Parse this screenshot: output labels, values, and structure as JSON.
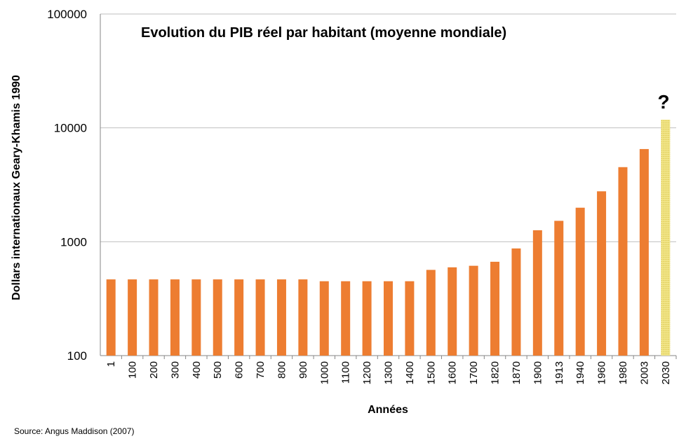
{
  "chart_data": {
    "type": "bar",
    "title": "Evolution du PIB réel par habitant (moyenne mondiale)",
    "xlabel": "Années",
    "ylabel": "Dollars internationaux Geary-Khamis 1990",
    "yscale": "log",
    "ylim": [
      100,
      100000
    ],
    "yticks": [
      "100",
      "1000",
      "10000",
      "100000"
    ],
    "grid": true,
    "categories": [
      "1",
      "100",
      "200",
      "300",
      "400",
      "500",
      "600",
      "700",
      "800",
      "900",
      "1000",
      "1100",
      "1200",
      "1300",
      "1400",
      "1500",
      "1600",
      "1700",
      "1820",
      "1870",
      "1900",
      "1913",
      "1940",
      "1960",
      "1980",
      "2003",
      "2030"
    ],
    "values": [
      467,
      467,
      467,
      467,
      467,
      467,
      467,
      467,
      467,
      467,
      450,
      450,
      450,
      450,
      450,
      566,
      596,
      615,
      667,
      873,
      1262,
      1526,
      1990,
      2772,
      4520,
      6516,
      11800
    ],
    "colors": {
      "bar": "#ed7d31",
      "projection": "#f2e68a",
      "projection_hatch": "#d9c44a",
      "grid": "#bfbfbf"
    },
    "annotation": "?",
    "source": "Source: Angus Maddison (2007)"
  }
}
